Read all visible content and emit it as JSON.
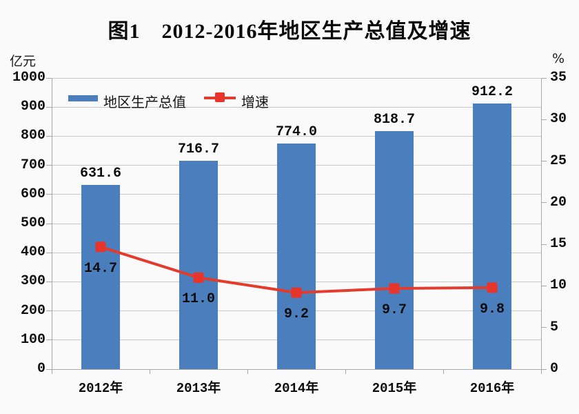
{
  "title": "图1　2012-2016年地区生产总值及增速",
  "chart_data": {
    "type": "bar+line",
    "title": "图1　2012-2016年地区生产总值及增速",
    "categories": [
      "2012年",
      "2013年",
      "2014年",
      "2015年",
      "2016年"
    ],
    "series": [
      {
        "name": "地区生产总值",
        "type": "bar",
        "axis": "left",
        "color": "#4B7EBD",
        "values": [
          631.6,
          716.7,
          774.0,
          818.7,
          912.2
        ],
        "value_labels": [
          "631.6",
          "716.7",
          "774.0",
          "818.7",
          "912.2"
        ]
      },
      {
        "name": "增速",
        "type": "line",
        "axis": "right",
        "color": "#E33B2C",
        "marker_color": "#E8352B",
        "values": [
          14.7,
          11.0,
          9.2,
          9.7,
          9.8
        ],
        "value_labels": [
          "14.7",
          "11.0",
          "9.2",
          "9.7",
          "9.8"
        ]
      }
    ],
    "left_axis": {
      "unit": "亿元",
      "min": 0,
      "max": 1000,
      "step": 100,
      "tick_labels": [
        "1000",
        "900",
        "800",
        "700",
        "600",
        "500",
        "400",
        "300",
        "200",
        "100",
        "0"
      ]
    },
    "right_axis": {
      "unit": "%",
      "min": 0,
      "max": 35,
      "step": 5,
      "tick_labels": [
        "35",
        "30",
        "25",
        "20",
        "15",
        "10",
        "5",
        "0"
      ]
    },
    "grid": true,
    "legend_position": "top-left-inside",
    "colors": {
      "bar": "#4B7EBD",
      "line": "#E33B2C",
      "grid": "#C9C7C7",
      "axis": "#A8A6A6",
      "text": "#151515",
      "background": "#FBFAFB"
    }
  }
}
